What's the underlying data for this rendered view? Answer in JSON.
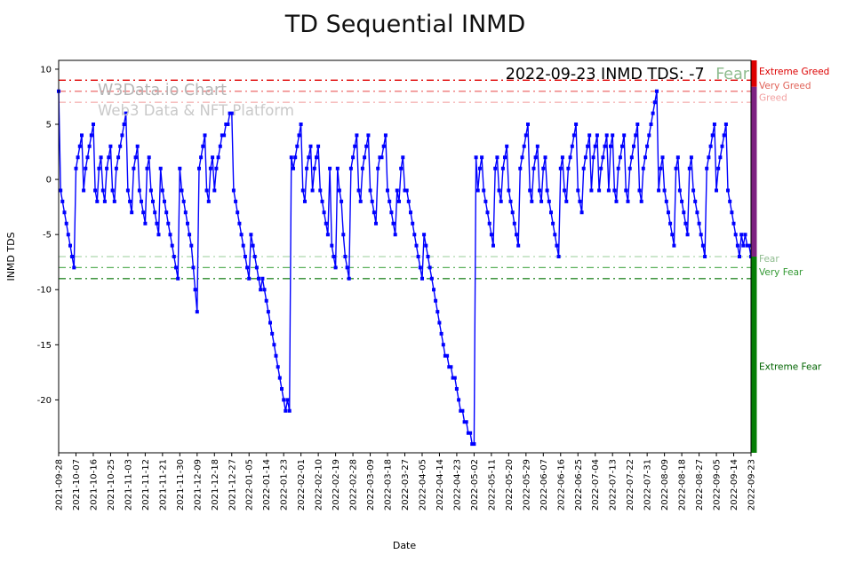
{
  "title": "TD Sequential INMD",
  "watermark": {
    "line1": "W3Data.io Chart",
    "line2": "Web3 Data & NFT Platform"
  },
  "annotation": {
    "text": "2022-09-23 INMD TDS: -7",
    "status": "Fear",
    "status_color": "#8fbc8f"
  },
  "axes": {
    "xlabel": "Date",
    "ylabel": "INMD TDS",
    "yticks": [
      10,
      5,
      0,
      -5,
      -10,
      -15,
      -20
    ],
    "ylim": [
      -24.8,
      10.8
    ],
    "xtick_labels": [
      "2021-09-28",
      "2021-10-07",
      "2021-10-16",
      "2021-10-25",
      "2021-11-03",
      "2021-11-12",
      "2021-11-21",
      "2021-11-30",
      "2021-12-09",
      "2021-12-18",
      "2021-12-27",
      "2022-01-05",
      "2022-01-14",
      "2022-01-23",
      "2022-02-01",
      "2022-02-10",
      "2022-02-19",
      "2022-02-28",
      "2022-03-09",
      "2022-03-18",
      "2022-03-27",
      "2022-04-05",
      "2022-04-14",
      "2022-04-23",
      "2022-05-02",
      "2022-05-11",
      "2022-05-20",
      "2022-05-29",
      "2022-06-07",
      "2022-06-16",
      "2022-06-25",
      "2022-07-04",
      "2022-07-13",
      "2022-07-22",
      "2022-07-31",
      "2022-08-09",
      "2022-08-18",
      "2022-08-27",
      "2022-09-05",
      "2022-09-14",
      "2022-09-23"
    ]
  },
  "threshold_lines": [
    {
      "value": 9,
      "color": "#e00000"
    },
    {
      "value": 8,
      "color": "#ee7777"
    },
    {
      "value": 7,
      "color": "#f6b8b8"
    },
    {
      "value": -7,
      "color": "#aed6ae"
    },
    {
      "value": -8,
      "color": "#5cb15c"
    },
    {
      "value": -9,
      "color": "#2b8a2b"
    }
  ],
  "zone_labels": [
    {
      "text": "Extreme Greed",
      "color": "#dd0000",
      "y_value": 9.8
    },
    {
      "text": "Very Greed",
      "color": "#e06056",
      "y_value": 8.5
    },
    {
      "text": "Greed",
      "color": "#f2a1a1",
      "y_value": 7.4
    },
    {
      "text": "Fear",
      "color": "#8fbc8f",
      "y_value": -7.2
    },
    {
      "text": "Very Fear",
      "color": "#339933",
      "y_value": -8.4
    },
    {
      "text": "Extreme Fear",
      "color": "#006400",
      "y_value": -17.0
    }
  ],
  "right_zone_bar": [
    {
      "from_value": 10.8,
      "to_value": 8.4,
      "color": "#dd0000"
    },
    {
      "from_value": 8.4,
      "to_value": -7.0,
      "color": "#7d2181"
    },
    {
      "from_value": -7.0,
      "to_value": -24.8,
      "color": "#067d06"
    }
  ],
  "chart_data": {
    "type": "line",
    "title": "TD Sequential INMD",
    "xlabel": "Date",
    "ylabel": "INMD TDS",
    "series_name": "INMD TDS",
    "line_color": "#0000ff",
    "marker": "square",
    "x_start": "2021-09-28",
    "x_end": "2022-09-23",
    "x_frequency": "daily",
    "ylim": [
      -24.8,
      10.8
    ],
    "values": [
      8,
      -1,
      -2,
      -3,
      -4,
      -5,
      -6,
      -7,
      -8,
      1,
      2,
      3,
      4,
      -1,
      1,
      2,
      3,
      4,
      5,
      -1,
      -2,
      1,
      2,
      -1,
      -2,
      1,
      2,
      3,
      -1,
      -2,
      1,
      2,
      3,
      4,
      5,
      6,
      -1,
      -2,
      -3,
      1,
      2,
      3,
      -1,
      -2,
      -3,
      -4,
      1,
      2,
      -1,
      -2,
      -3,
      -4,
      -5,
      1,
      -1,
      -2,
      -3,
      -4,
      -5,
      -6,
      -7,
      -8,
      -9,
      1,
      -1,
      -2,
      -3,
      -4,
      -5,
      -6,
      -8,
      -10,
      -12,
      1,
      2,
      3,
      4,
      -1,
      -2,
      1,
      2,
      -1,
      1,
      2,
      3,
      4,
      4,
      5,
      5,
      6,
      6,
      -1,
      -2,
      -3,
      -4,
      -5,
      -6,
      -7,
      -8,
      -9,
      -5,
      -6,
      -7,
      -8,
      -9,
      -10,
      -9,
      -10,
      -11,
      -12,
      -13,
      -14,
      -15,
      -16,
      -17,
      -18,
      -19,
      -20,
      -21,
      -20,
      -21,
      2,
      1,
      2,
      3,
      4,
      5,
      -1,
      -2,
      1,
      2,
      3,
      -1,
      1,
      2,
      3,
      -1,
      -2,
      -3,
      -4,
      -5,
      1,
      -6,
      -7,
      -8,
      1,
      -1,
      -2,
      -5,
      -7,
      -8,
      -9,
      1,
      2,
      3,
      4,
      -1,
      -2,
      1,
      2,
      3,
      4,
      -1,
      -2,
      -3,
      -4,
      1,
      2,
      2,
      3,
      4,
      -1,
      -2,
      -3,
      -4,
      -5,
      -1,
      -2,
      1,
      2,
      -1,
      -1,
      -2,
      -3,
      -4,
      -5,
      -6,
      -7,
      -8,
      -9,
      -5,
      -6,
      -7,
      -8,
      -9,
      -10,
      -11,
      -12,
      -13,
      -14,
      -15,
      -16,
      -16,
      -17,
      -17,
      -18,
      -18,
      -19,
      -20,
      -21,
      -21,
      -22,
      -22,
      -23,
      -23,
      -24,
      -24,
      2,
      -1,
      1,
      2,
      -1,
      -2,
      -3,
      -4,
      -5,
      -6,
      1,
      2,
      -1,
      -2,
      1,
      2,
      3,
      -1,
      -2,
      -3,
      -4,
      -5,
      -6,
      1,
      2,
      3,
      4,
      5,
      -1,
      -2,
      1,
      2,
      3,
      -1,
      -2,
      1,
      2,
      -1,
      -2,
      -3,
      -4,
      -5,
      -6,
      -7,
      1,
      2,
      -1,
      -2,
      1,
      2,
      3,
      4,
      5,
      -1,
      -2,
      -3,
      1,
      2,
      3,
      4,
      -1,
      2,
      3,
      4,
      -1,
      1,
      2,
      3,
      4,
      -1,
      3,
      4,
      -1,
      -2,
      1,
      2,
      3,
      4,
      -1,
      -2,
      1,
      2,
      3,
      4,
      5,
      -1,
      -2,
      1,
      2,
      3,
      4,
      5,
      6,
      7,
      8,
      -1,
      1,
      2,
      -1,
      -2,
      -3,
      -4,
      -5,
      -6,
      1,
      2,
      -1,
      -2,
      -3,
      -4,
      -5,
      1,
      2,
      -1,
      -2,
      -3,
      -4,
      -5,
      -6,
      -7,
      1,
      2,
      3,
      4,
      5,
      -1,
      1,
      2,
      3,
      4,
      5,
      -1,
      -2,
      -3,
      -4,
      -5,
      -6,
      -7,
      -5,
      -6,
      -5,
      -6,
      -6,
      -7
    ]
  }
}
